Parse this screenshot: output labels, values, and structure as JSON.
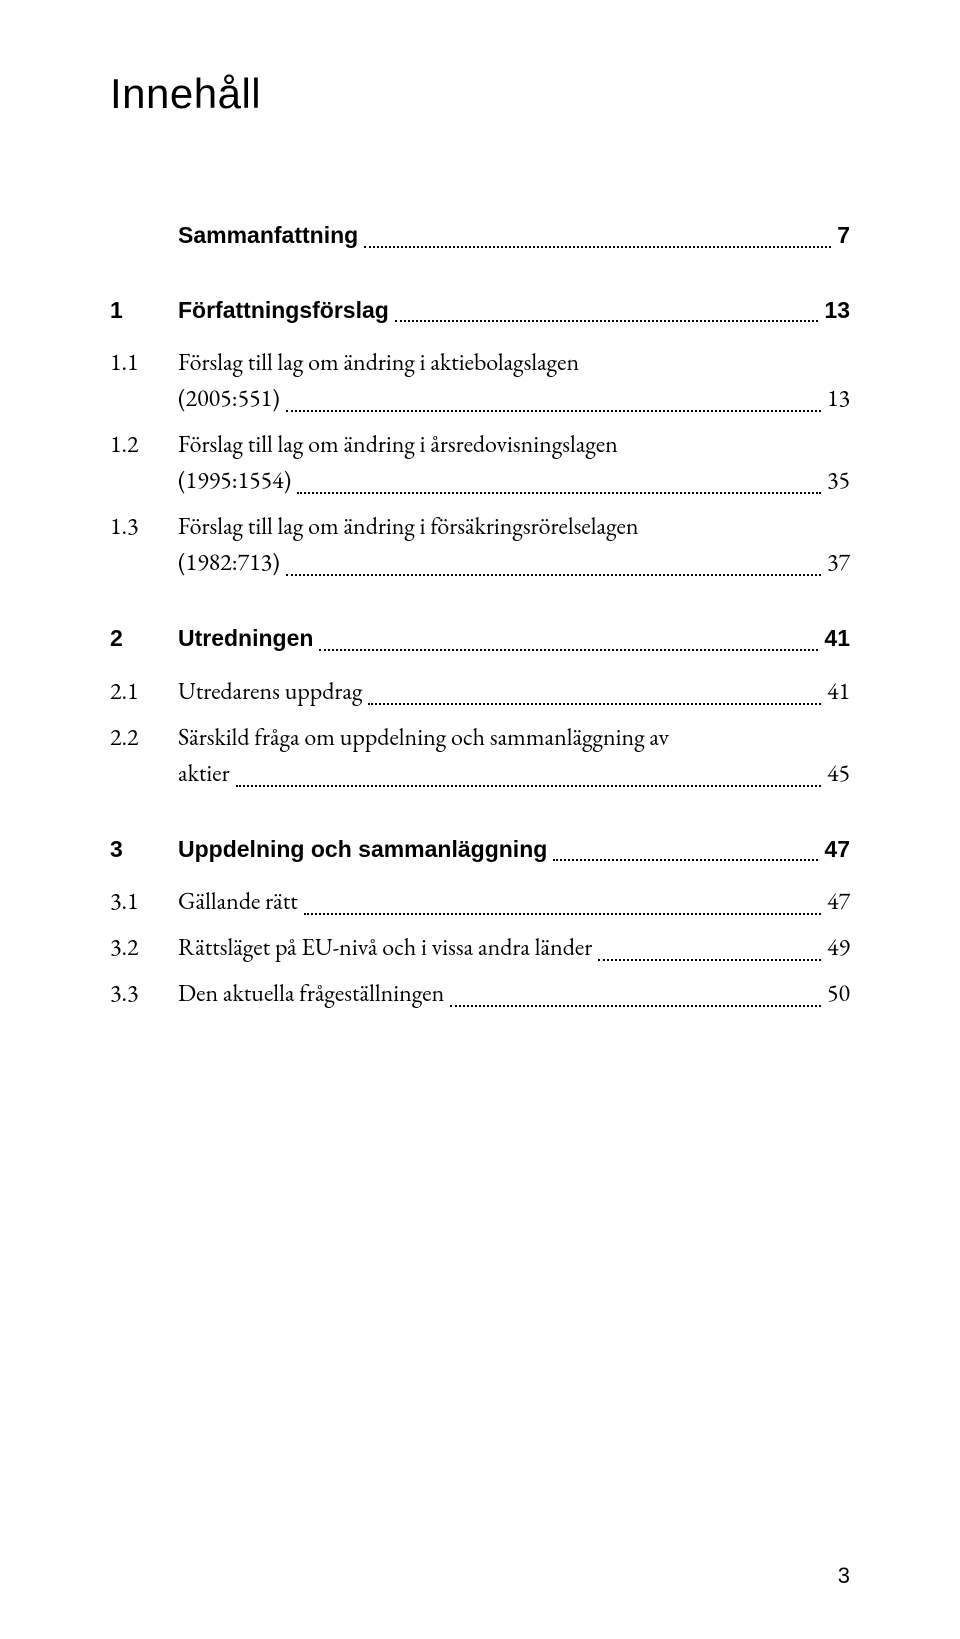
{
  "title": "Innehåll",
  "page_number": "3",
  "entries": [
    {
      "level": "section",
      "num": "",
      "label": "Sammanfattning",
      "page": "7"
    },
    {
      "level": "section",
      "num": "1",
      "label": "Författningsförslag",
      "page": "13"
    },
    {
      "level": "sub",
      "num": "1.1",
      "label_line1": "Förslag till lag om ändring i aktiebolagslagen",
      "label_last": "(2005:551)",
      "page": "13"
    },
    {
      "level": "sub",
      "num": "1.2",
      "label_line1": "Förslag till lag om ändring i årsredovisningslagen",
      "label_last": "(1995:1554)",
      "page": "35"
    },
    {
      "level": "sub",
      "num": "1.3",
      "label_line1": "Förslag till lag om ändring i försäkringsrörelselagen",
      "label_last": "(1982:713)",
      "page": "37"
    },
    {
      "level": "section",
      "num": "2",
      "label": "Utredningen",
      "page": "41"
    },
    {
      "level": "sub",
      "num": "2.1",
      "label": "Utredarens uppdrag",
      "page": "41"
    },
    {
      "level": "sub",
      "num": "2.2",
      "label_line1": "Särskild fråga om uppdelning och sammanläggning av",
      "label_last": "aktier",
      "page": "45"
    },
    {
      "level": "section",
      "num": "3",
      "label": "Uppdelning och sammanläggning",
      "page": "47"
    },
    {
      "level": "sub",
      "num": "3.1",
      "label": "Gällande rätt",
      "page": "47"
    },
    {
      "level": "sub",
      "num": "3.2",
      "label": "Rättsläget på EU-nivå och i vissa andra länder",
      "page": "49"
    },
    {
      "level": "sub",
      "num": "3.3",
      "label": "Den aktuella frågeställningen",
      "page": "50"
    }
  ]
}
